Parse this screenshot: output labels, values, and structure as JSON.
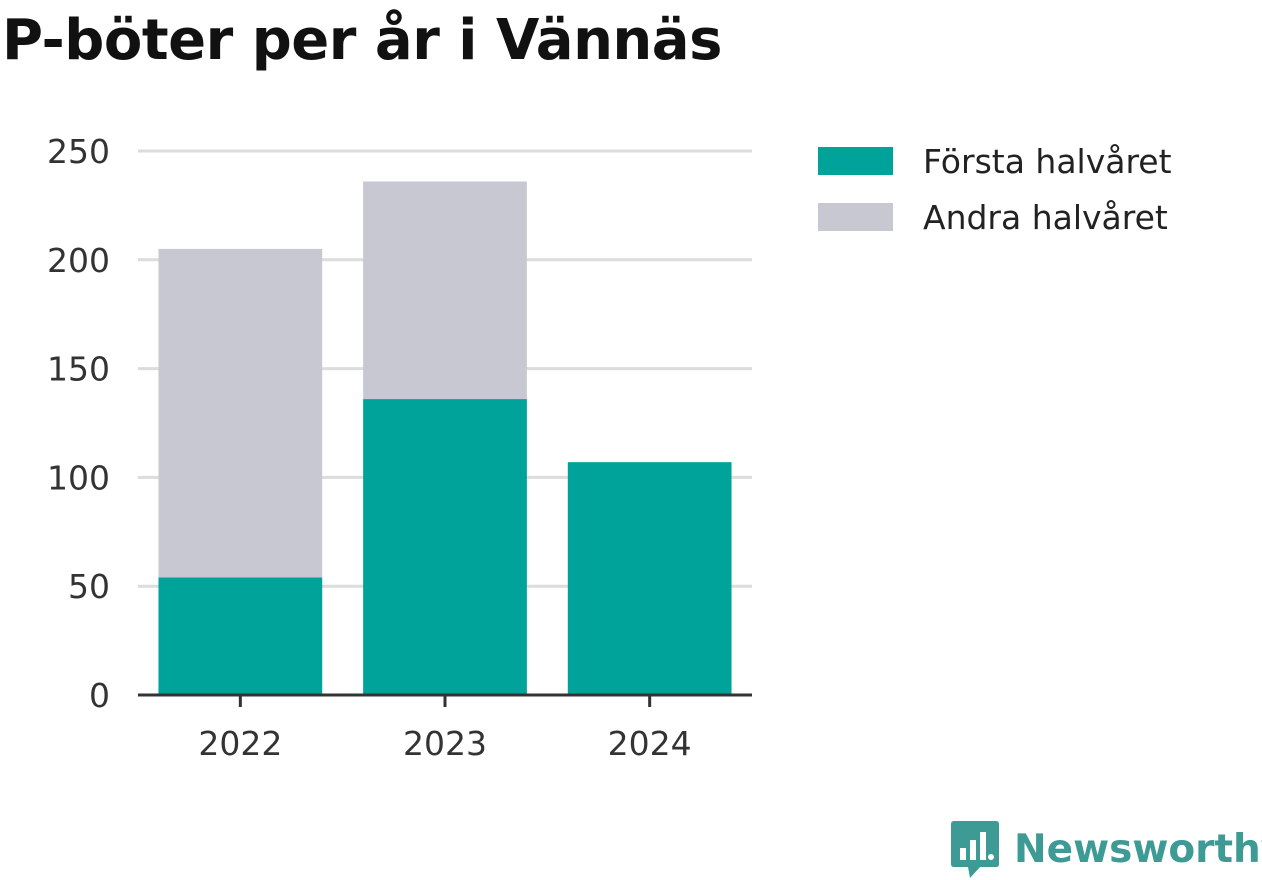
{
  "chart_data": {
    "type": "bar",
    "stacked": true,
    "title": "P-böter per år i Vännäs",
    "categories": [
      "2022",
      "2023",
      "2024"
    ],
    "series": [
      {
        "name": "Första halvåret",
        "values": [
          54,
          136,
          107
        ],
        "color": "#00a39a"
      },
      {
        "name": "Andra halvåret",
        "values": [
          151,
          100,
          0
        ],
        "color": "#c8c8d2"
      }
    ],
    "ylim": [
      0,
      250
    ],
    "yticks": [
      0,
      50,
      100,
      150,
      200,
      250
    ],
    "xlabel": "",
    "ylabel": "",
    "grid": true,
    "legend_position": "top-right"
  },
  "brand": {
    "name": "Newsworthy",
    "icon": "newsworthy-logo-icon",
    "color": "#3d9a94"
  },
  "colors": {
    "grid": "#dcdcdc",
    "axis": "#333333",
    "title": "#111111"
  }
}
